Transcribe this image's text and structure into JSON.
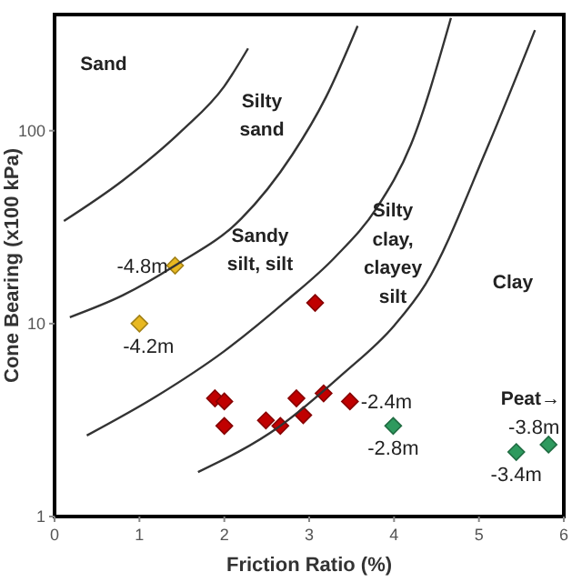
{
  "chart_data": {
    "type": "scatter",
    "xlabel": "Friction Ratio (%)",
    "ylabel": "Cone Bearing (x100 kPa)",
    "xlim": [
      0,
      6
    ],
    "xticks": [
      0,
      1,
      2,
      3,
      4,
      5,
      6
    ],
    "ylim": [
      1,
      400
    ],
    "yticks": [
      1,
      10,
      100
    ],
    "log": true,
    "grid": false,
    "marker": "diamond",
    "series": [
      {
        "color": "#e8b820",
        "x": [
          1.42,
          1.0
        ],
        "values": [
          20,
          10
        ]
      },
      {
        "color": "#c00000",
        "x": [
          3.07,
          1.89,
          2.0,
          2.0,
          2.49,
          2.66,
          2.85,
          2.93,
          3.17,
          3.48
        ],
        "values": [
          12.8,
          4.1,
          3.95,
          2.95,
          3.15,
          2.95,
          4.1,
          3.35,
          4.35,
          3.95
        ]
      },
      {
        "color": "#2e9a5e",
        "x": [
          3.99,
          5.44,
          5.82
        ],
        "values": [
          2.95,
          2.16,
          2.36
        ]
      },
      {
        "type": "line",
        "color": "#333333",
        "marker": "none",
        "x": [
          0.11,
          0.8,
          1.5,
          2.0,
          2.28
        ],
        "values": [
          34,
          55,
          100,
          170,
          267
        ]
      },
      {
        "type": "line",
        "color": "#333333",
        "marker": "none",
        "x": [
          0.18,
          0.8,
          1.42,
          2.2,
          2.8,
          3.2,
          3.57
        ],
        "values": [
          10.8,
          14,
          20,
          35,
          75,
          150,
          349
        ]
      },
      {
        "type": "line",
        "color": "#333333",
        "marker": "none",
        "x": [
          0.38,
          1.2,
          2.0,
          2.72,
          3.3,
          3.8,
          4.2,
          4.67
        ],
        "values": [
          2.63,
          4.2,
          7.2,
          13,
          22,
          40,
          85,
          384
        ]
      },
      {
        "type": "line",
        "color": "#333333",
        "marker": "none",
        "x": [
          1.69,
          2.65,
          3.4,
          4.0,
          4.37,
          5.09,
          5.66
        ],
        "values": [
          1.7,
          2.93,
          5.5,
          9.75,
          16,
          80,
          332
        ]
      }
    ],
    "annotations": [
      "Sand",
      "Silty\nsand",
      "Sandy\nsilt, silt",
      "Silty\nclay,\nclayey\nsilt",
      "Clay",
      "Peat→",
      {
        "text": "-4.8m",
        "x": 1.42,
        "y": 20
      },
      {
        "text": "-4.2m",
        "x": 1.0,
        "y": 10
      },
      {
        "text": "-2.4m",
        "x": 3.48,
        "y": 3.95
      },
      {
        "text": "-2.8m",
        "x": 3.99,
        "y": 2.95
      },
      {
        "text": "-3.4m",
        "x": 5.44,
        "y": 2.16
      },
      {
        "text": "-3.8m",
        "x": 5.82,
        "y": 2.36
      }
    ]
  }
}
